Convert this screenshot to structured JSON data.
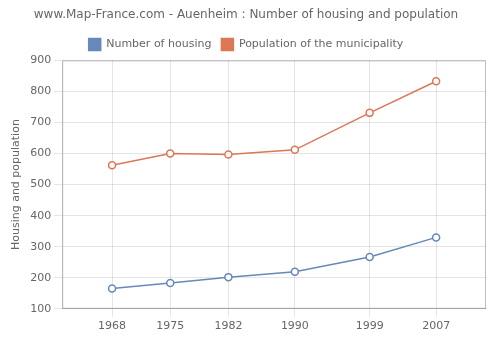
{
  "chart_data": {
    "type": "line",
    "title": "www.Map-France.com - Auenheim : Number of housing and population",
    "ylabel": "Housing and population",
    "x": [
      1968,
      1975,
      1982,
      1990,
      1999,
      2007
    ],
    "series": [
      {
        "name": "Number of housing",
        "color": "#6688bb",
        "marker": "circle",
        "values": [
          165,
          183,
          202,
          219,
          267,
          330
        ]
      },
      {
        "name": "Population of the municipality",
        "color": "#dd7755",
        "marker": "circle",
        "values": [
          562,
          600,
          597,
          612,
          731,
          833
        ]
      }
    ],
    "xlim": [
      1962,
      2013
    ],
    "xticks": [
      1968,
      1975,
      1982,
      1990,
      1999,
      2007
    ],
    "ylim": [
      100,
      900
    ],
    "yticks": [
      100,
      200,
      300,
      400,
      500,
      600,
      700,
      800,
      900
    ],
    "grid": true,
    "legend": "top"
  }
}
